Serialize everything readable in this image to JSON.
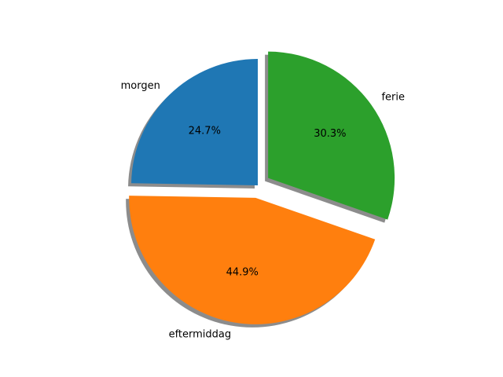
{
  "chart_data": {
    "type": "pie",
    "title": "",
    "categories": [
      "morgen",
      "eftermiddag",
      "ferie"
    ],
    "values": [
      24.7,
      44.9,
      30.3
    ],
    "percent_labels": [
      "24.7%",
      "44.9%",
      "30.3%"
    ],
    "colors": [
      "#1f77b4",
      "#ff7f0e",
      "#2ca02c"
    ],
    "explode": [
      0,
      0.1,
      0.1
    ],
    "start_angle_deg": 90,
    "direction": "counterclockwise",
    "shadow": true
  }
}
